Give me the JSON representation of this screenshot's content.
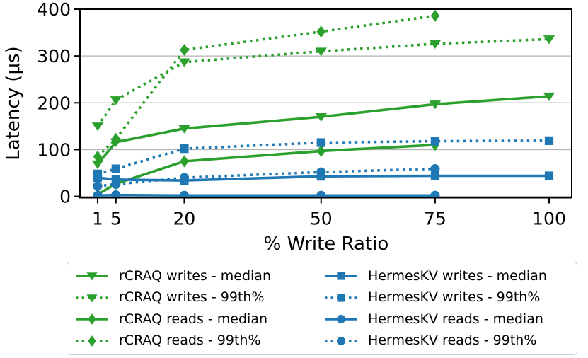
{
  "chart_data": {
    "type": "line",
    "title": "",
    "xlabel": "% Write Ratio",
    "ylabel": "Latency (μs)",
    "x_ticks": [
      1,
      5,
      20,
      50,
      75,
      100
    ],
    "y_ticks": [
      0,
      100,
      200,
      300,
      400
    ],
    "xlim": [
      -2,
      105
    ],
    "ylim": [
      0,
      400
    ],
    "grid": "horizontal-gridlines-on",
    "legend_position": "below-chart, 2 columns, boxed",
    "x": [
      1,
      5,
      20,
      50,
      75,
      100
    ],
    "series": [
      {
        "id": "rcraq-writes-median",
        "name": "rCRAQ writes - median",
        "color": "#2ca02c",
        "line": "solid",
        "marker": "triangle-down",
        "values": [
          69,
          116,
          145,
          170,
          197,
          214
        ]
      },
      {
        "id": "rcraq-writes-99th",
        "name": "rCRAQ writes - 99th%",
        "color": "#2ca02c",
        "line": "dotted",
        "marker": "triangle-down",
        "values": [
          150,
          206,
          287,
          310,
          326,
          336
        ]
      },
      {
        "id": "rcraq-reads-median",
        "name": "rCRAQ reads - median",
        "color": "#2ca02c",
        "line": "solid",
        "marker": "diamond",
        "values": [
          4,
          27,
          75,
          97,
          110,
          null
        ]
      },
      {
        "id": "rcraq-reads-99th",
        "name": "rCRAQ reads - 99th%",
        "color": "#2ca02c",
        "line": "dotted",
        "marker": "diamond",
        "values": [
          85,
          123,
          313,
          352,
          386,
          null
        ]
      },
      {
        "id": "hermeskv-writes-median",
        "name": "HermesKV writes - median",
        "color": "#1f77b4",
        "line": "solid",
        "marker": "square",
        "values": [
          40,
          36,
          34,
          43,
          44,
          44
        ]
      },
      {
        "id": "hermeskv-writes-99th",
        "name": "HermesKV writes - 99th%",
        "color": "#1f77b4",
        "line": "dotted",
        "marker": "square",
        "values": [
          48,
          59,
          102,
          115,
          118,
          119
        ]
      },
      {
        "id": "hermeskv-reads-median",
        "name": "HermesKV reads - median",
        "color": "#1f77b4",
        "line": "solid",
        "marker": "circle",
        "values": [
          2,
          3,
          2,
          2,
          2,
          null
        ]
      },
      {
        "id": "hermeskv-reads-99th",
        "name": "HermesKV reads - 99th%",
        "color": "#1f77b4",
        "line": "dotted",
        "marker": "circle",
        "values": [
          22,
          26,
          40,
          52,
          59,
          null
        ]
      }
    ],
    "colors": {
      "rcraq_green": "#2ca02c",
      "hermeskv_blue": "#1f77b4",
      "gridline": "#b3b3b3",
      "spine": "#000000",
      "legend_border": "#cccccc",
      "background": "#ffffff"
    }
  }
}
